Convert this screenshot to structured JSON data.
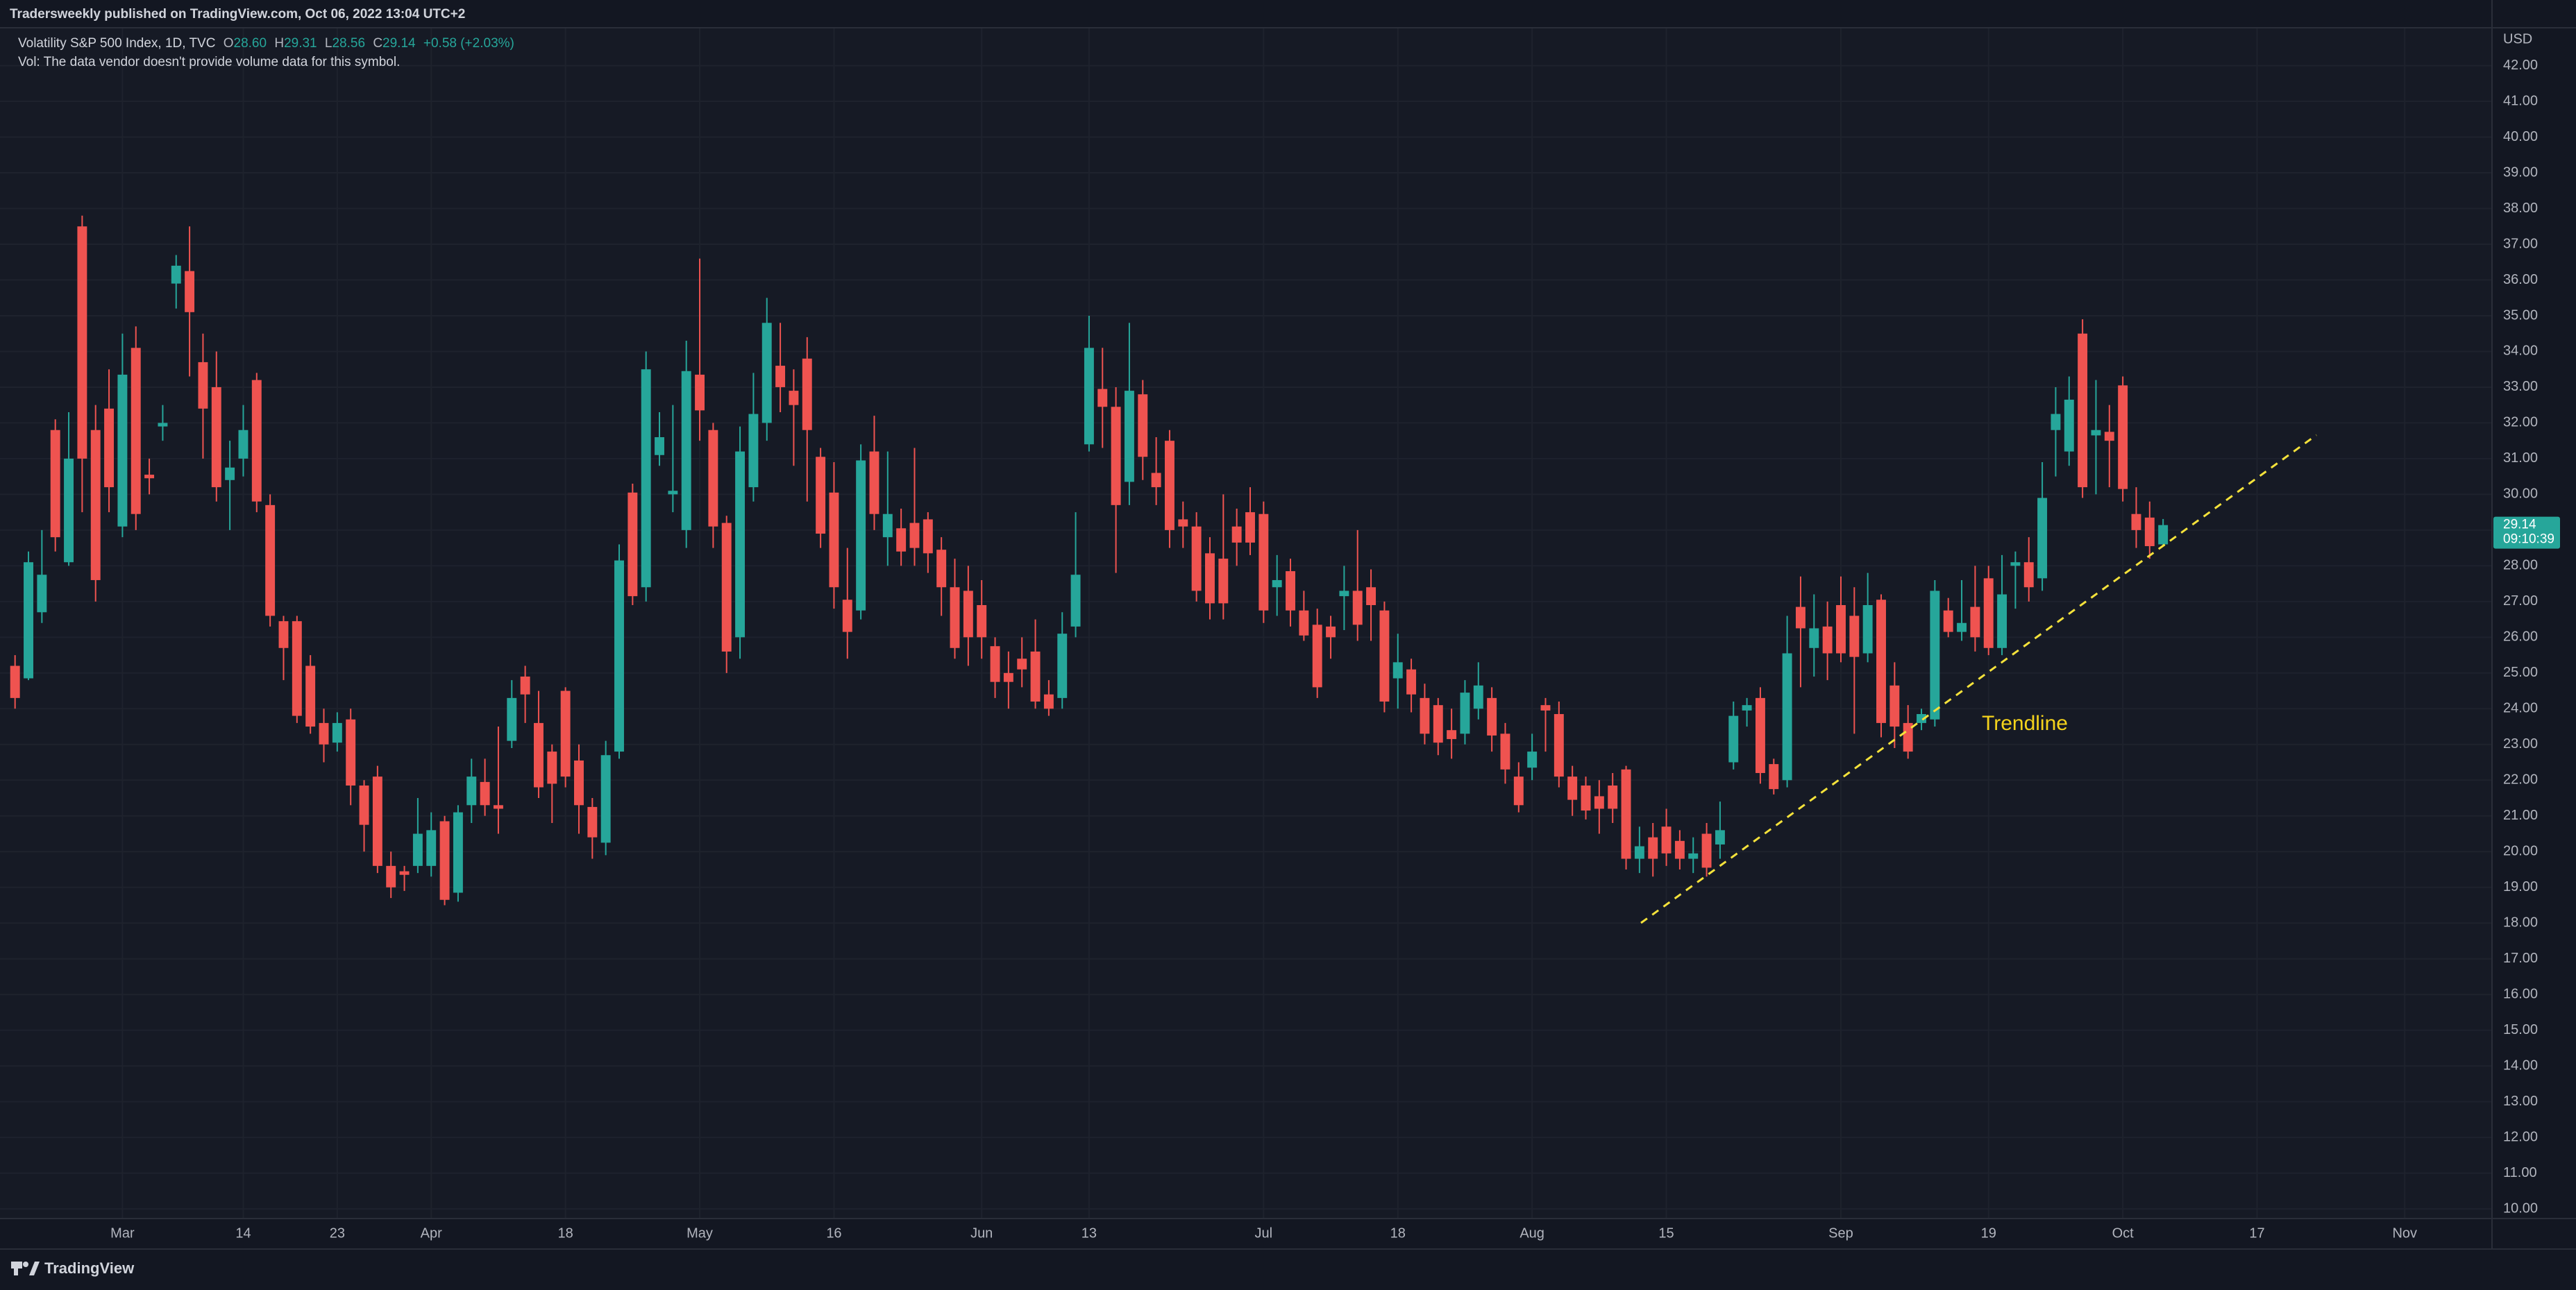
{
  "header": {
    "publisher_line": "Tradersweekly published on TradingView.com, Oct 06, 2022 13:04 UTC+2"
  },
  "legend": {
    "symbol": "Volatility S&P 500 Index, 1D, TVC",
    "ohlc": [
      {
        "key": "O",
        "value": "28.60"
      },
      {
        "key": "H",
        "value": "29.31"
      },
      {
        "key": "L",
        "value": "28.56"
      },
      {
        "key": "C",
        "value": "29.14"
      }
    ],
    "change": "+0.58 (+2.03%)",
    "volume_note": "Vol: The data vendor doesn't provide volume data for this symbol."
  },
  "chart_data": {
    "type": "candlestick",
    "annotation": "Trendline",
    "y_axis_unit": "USD",
    "last_price": "29.14",
    "countdown": "09:10:39",
    "up_color": "#26a69a",
    "down_color": "#ef5350",
    "grid": true,
    "categories": [
      null,
      null,
      null,
      null,
      null,
      null,
      null,
      null,
      "Mar",
      null,
      null,
      null,
      null,
      null,
      null,
      null,
      null,
      "14",
      null,
      null,
      null,
      null,
      null,
      null,
      "23",
      null,
      null,
      null,
      null,
      null,
      null,
      "Apr",
      null,
      null,
      null,
      null,
      null,
      null,
      null,
      null,
      null,
      "18",
      null,
      null,
      null,
      null,
      null,
      null,
      null,
      null,
      null,
      "May",
      null,
      null,
      null,
      null,
      null,
      null,
      null,
      null,
      null,
      "16",
      null,
      null,
      null,
      null,
      null,
      null,
      null,
      null,
      null,
      null,
      "Jun",
      null,
      null,
      null,
      null,
      null,
      null,
      null,
      "13",
      null,
      null,
      null,
      null,
      null,
      null,
      null,
      null,
      null,
      null,
      null,
      null,
      "Jul",
      null,
      null,
      null,
      null,
      null,
      null,
      null,
      null,
      null,
      "18",
      null,
      null,
      null,
      null,
      null,
      null,
      null,
      null,
      null,
      "Aug",
      null,
      null,
      null,
      null,
      null,
      null,
      null,
      null,
      null,
      "15",
      null,
      null,
      null,
      null,
      null,
      null,
      null,
      null,
      null,
      null,
      null,
      null,
      "Sep",
      null,
      null,
      null,
      null,
      null,
      null,
      null,
      null,
      null,
      null,
      "19",
      null,
      null,
      null,
      null,
      null,
      null,
      null,
      null,
      null,
      "Oct",
      null,
      null,
      null,
      null,
      null,
      null,
      null,
      null,
      null,
      "17",
      null,
      null,
      null,
      null,
      null,
      null,
      null,
      null,
      null,
      null,
      "Nov",
      null,
      null,
      null,
      null,
      null,
      null
    ],
    "open": [
      25.2,
      24.85,
      26.7,
      31.8,
      28.1,
      37.5,
      31.8,
      32.4,
      29.1,
      34.1,
      30.55,
      31.9,
      35.9,
      36.25,
      33.7,
      33.0,
      30.4,
      31.0,
      33.2,
      29.7,
      26.45,
      26.45,
      25.2,
      23.6,
      23.05,
      23.7,
      21.85,
      22.1,
      19.6,
      19.45,
      19.6,
      19.6,
      20.85,
      18.85,
      21.3,
      21.95,
      21.3,
      23.1,
      24.9,
      23.6,
      22.8,
      24.5,
      22.55,
      21.25,
      20.25,
      22.8,
      30.05,
      27.4,
      31.1,
      30.0,
      29.0,
      33.35,
      31.8,
      29.2,
      26.0,
      30.2,
      32.0,
      33.6,
      32.9,
      33.8,
      31.05,
      30.05,
      27.05,
      26.75,
      31.2,
      28.8,
      29.05,
      29.2,
      29.3,
      28.45,
      27.4,
      27.3,
      26.9,
      25.75,
      25.0,
      25.4,
      25.6,
      24.4,
      24.3,
      26.3,
      31.4,
      32.95,
      32.45,
      30.35,
      32.8,
      30.6,
      31.5,
      29.3,
      29.1,
      28.35,
      28.2,
      29.1,
      29.5,
      29.45,
      27.4,
      27.85,
      26.75,
      26.35,
      26.3,
      27.15,
      27.3,
      27.4,
      26.75,
      24.85,
      25.1,
      24.3,
      24.1,
      23.4,
      23.3,
      24.0,
      24.3,
      23.3,
      22.1,
      22.35,
      24.1,
      23.85,
      22.1,
      21.85,
      21.55,
      21.85,
      22.3,
      19.8,
      20.4,
      20.7,
      20.3,
      19.8,
      20.5,
      20.2,
      22.5,
      23.95,
      24.3,
      22.45,
      22.0,
      26.85,
      25.7,
      26.3,
      26.9,
      26.6,
      25.55,
      27.05,
      24.65,
      23.6,
      23.6,
      23.7,
      26.75,
      26.15,
      26.85,
      27.65,
      25.7,
      28.0,
      28.1,
      27.65,
      31.8,
      31.2,
      34.5,
      31.65,
      31.75,
      33.05,
      29.45,
      29.35,
      28.6,
      null,
      null,
      null,
      null,
      null,
      null,
      null,
      null,
      null,
      null,
      null,
      null,
      null,
      null,
      null,
      null,
      null,
      null,
      null,
      null,
      null,
      null,
      null,
      null
    ],
    "high": [
      25.5,
      28.4,
      29.0,
      32.1,
      32.3,
      37.8,
      32.5,
      33.5,
      34.5,
      34.7,
      31.0,
      32.5,
      36.7,
      37.5,
      34.5,
      34.0,
      31.5,
      32.5,
      33.4,
      30.0,
      26.6,
      26.6,
      25.5,
      24.0,
      23.9,
      24.0,
      22.0,
      22.4,
      20.0,
      19.6,
      21.5,
      21.1,
      21.0,
      21.3,
      22.6,
      22.6,
      23.5,
      24.8,
      25.2,
      24.5,
      23.0,
      24.6,
      23.0,
      21.5,
      23.1,
      28.6,
      30.3,
      34.0,
      32.3,
      32.5,
      34.3,
      36.6,
      32.0,
      29.4,
      31.9,
      33.4,
      35.5,
      34.8,
      33.5,
      34.4,
      31.3,
      30.9,
      28.5,
      31.4,
      32.2,
      31.2,
      29.6,
      31.3,
      29.5,
      28.8,
      28.2,
      28.0,
      27.6,
      26.0,
      25.6,
      26.0,
      26.5,
      24.8,
      26.7,
      29.5,
      35.0,
      34.1,
      33.0,
      34.8,
      33.2,
      31.6,
      31.8,
      29.8,
      29.5,
      28.8,
      30.0,
      29.6,
      30.2,
      29.8,
      28.3,
      28.2,
      27.3,
      26.8,
      26.6,
      28.0,
      29.0,
      27.9,
      27.0,
      26.1,
      25.4,
      24.7,
      24.3,
      24.0,
      24.8,
      25.3,
      24.6,
      23.6,
      22.5,
      23.3,
      24.3,
      24.2,
      22.4,
      22.1,
      22.0,
      22.2,
      22.4,
      20.7,
      20.8,
      21.2,
      20.6,
      20.4,
      20.8,
      21.4,
      24.2,
      24.3,
      24.6,
      22.6,
      26.6,
      27.7,
      27.2,
      27.0,
      27.7,
      27.4,
      27.8,
      27.2,
      25.3,
      24.1,
      24.0,
      27.6,
      27.1,
      27.6,
      28.0,
      28.0,
      28.3,
      28.4,
      28.8,
      30.9,
      33.0,
      33.3,
      34.9,
      33.2,
      32.5,
      33.3,
      30.2,
      29.8,
      29.31,
      null,
      null,
      null,
      null,
      null,
      null,
      null,
      null,
      null,
      null,
      null,
      null,
      null,
      null,
      null,
      null,
      null,
      null,
      null,
      null,
      null,
      null,
      null,
      null
    ],
    "low": [
      24.0,
      24.8,
      26.4,
      28.4,
      28.0,
      29.5,
      27.0,
      29.5,
      28.8,
      29.0,
      30.0,
      31.5,
      35.2,
      33.3,
      31.0,
      29.8,
      29.0,
      30.5,
      29.5,
      26.3,
      24.8,
      23.6,
      23.3,
      22.5,
      22.8,
      21.3,
      20.0,
      19.4,
      18.7,
      18.9,
      19.4,
      19.3,
      18.5,
      18.6,
      20.8,
      21.0,
      20.5,
      22.9,
      23.6,
      21.5,
      20.8,
      21.8,
      20.5,
      19.8,
      19.9,
      22.6,
      26.9,
      27.0,
      30.8,
      29.5,
      28.5,
      31.5,
      28.5,
      25.0,
      25.4,
      29.8,
      31.5,
      32.3,
      30.8,
      29.8,
      28.5,
      26.8,
      25.4,
      26.5,
      29.0,
      28.0,
      28.0,
      28.0,
      27.8,
      26.6,
      25.4,
      25.2,
      25.4,
      24.3,
      24.0,
      24.6,
      24.0,
      23.8,
      24.0,
      26.0,
      31.2,
      31.3,
      27.8,
      29.7,
      30.4,
      29.7,
      28.5,
      28.5,
      27.0,
      26.5,
      26.5,
      28.0,
      28.3,
      26.4,
      26.6,
      26.3,
      25.9,
      24.3,
      25.4,
      26.2,
      25.9,
      25.9,
      23.9,
      24.0,
      23.9,
      23.0,
      22.7,
      22.6,
      23.0,
      23.7,
      22.8,
      21.9,
      21.1,
      22.0,
      22.8,
      21.8,
      21.0,
      20.9,
      20.5,
      20.8,
      19.5,
      19.4,
      19.3,
      19.6,
      19.5,
      19.4,
      19.3,
      19.8,
      22.3,
      23.5,
      21.9,
      21.6,
      21.8,
      24.6,
      24.9,
      24.8,
      25.3,
      23.3,
      25.3,
      23.2,
      22.9,
      22.6,
      23.4,
      23.5,
      26.0,
      25.9,
      25.6,
      25.5,
      25.5,
      26.8,
      27.0,
      27.3,
      30.5,
      30.8,
      29.9,
      30.0,
      30.2,
      29.8,
      28.5,
      28.2,
      28.56,
      null,
      null,
      null,
      null,
      null,
      null,
      null,
      null,
      null,
      null,
      null,
      null,
      null,
      null,
      null,
      null,
      null,
      null,
      null,
      null,
      null,
      null,
      null,
      null
    ],
    "close": [
      24.3,
      28.1,
      27.75,
      28.8,
      31.0,
      31.0,
      27.6,
      30.2,
      33.35,
      29.45,
      30.45,
      32.0,
      36.4,
      35.1,
      32.4,
      30.2,
      30.75,
      31.8,
      29.8,
      26.6,
      25.7,
      23.8,
      23.5,
      23.0,
      23.6,
      21.85,
      20.75,
      19.6,
      19.0,
      19.35,
      20.5,
      20.6,
      18.65,
      21.1,
      22.1,
      21.3,
      21.2,
      24.3,
      24.4,
      21.8,
      21.9,
      22.1,
      21.3,
      20.4,
      22.7,
      28.15,
      27.15,
      33.5,
      31.6,
      30.1,
      33.45,
      32.35,
      29.1,
      25.6,
      31.2,
      32.25,
      34.8,
      33.0,
      32.5,
      31.8,
      28.9,
      27.4,
      26.15,
      30.95,
      29.45,
      29.45,
      28.4,
      28.5,
      28.35,
      27.4,
      25.7,
      26.0,
      26.0,
      24.75,
      24.75,
      25.1,
      24.2,
      24.0,
      26.1,
      27.75,
      34.1,
      32.45,
      29.7,
      32.9,
      31.05,
      30.2,
      29.0,
      29.1,
      27.3,
      26.95,
      26.95,
      28.65,
      28.65,
      26.75,
      27.6,
      26.75,
      26.05,
      24.6,
      26.0,
      27.3,
      26.35,
      26.9,
      24.2,
      25.3,
      24.4,
      23.3,
      23.05,
      23.15,
      24.45,
      24.65,
      23.25,
      22.3,
      21.3,
      22.8,
      23.95,
      22.1,
      21.45,
      21.15,
      21.2,
      21.2,
      19.8,
      20.15,
      19.8,
      19.95,
      19.8,
      19.95,
      19.55,
      20.6,
      23.8,
      24.1,
      22.2,
      21.75,
      25.55,
      26.25,
      26.25,
      25.55,
      25.55,
      25.45,
      26.9,
      23.6,
      23.5,
      22.8,
      23.85,
      27.3,
      26.15,
      26.4,
      26.0,
      25.7,
      27.2,
      28.1,
      27.4,
      29.9,
      32.25,
      32.65,
      30.2,
      31.8,
      31.5,
      30.15,
      29.0,
      28.55,
      29.14,
      null,
      null,
      null,
      null,
      null,
      null,
      null,
      null,
      null,
      null,
      null,
      null,
      null,
      null,
      null,
      null,
      null,
      null,
      null,
      null,
      null,
      null,
      null,
      null
    ],
    "ylim": [
      9.73,
      43.06
    ],
    "yticks": [
      {
        "value": 10,
        "label": "10.00"
      },
      {
        "value": 11,
        "label": "11.00"
      },
      {
        "value": 12,
        "label": "12.00"
      },
      {
        "value": 13,
        "label": "13.00"
      },
      {
        "value": 14,
        "label": "14.00"
      },
      {
        "value": 15,
        "label": "15.00"
      },
      {
        "value": 16,
        "label": "16.00"
      },
      {
        "value": 17,
        "label": "17.00"
      },
      {
        "value": 18,
        "label": "18.00"
      },
      {
        "value": 19,
        "label": "19.00"
      },
      {
        "value": 20,
        "label": "20.00"
      },
      {
        "value": 21,
        "label": "21.00"
      },
      {
        "value": 22,
        "label": "22.00"
      },
      {
        "value": 23,
        "label": "23.00"
      },
      {
        "value": 24,
        "label": "24.00"
      },
      {
        "value": 25,
        "label": "25.00"
      },
      {
        "value": 26,
        "label": "26.00"
      },
      {
        "value": 27,
        "label": "27.00"
      },
      {
        "value": 28,
        "label": "28.00"
      },
      {
        "value": 29,
        "label": "29.00"
      },
      {
        "value": 30,
        "label": "30.00"
      },
      {
        "value": 31,
        "label": "31.00"
      },
      {
        "value": 32,
        "label": "32.00"
      },
      {
        "value": 33,
        "label": "33.00"
      },
      {
        "value": 34,
        "label": "34.00"
      },
      {
        "value": 35,
        "label": "35.00"
      },
      {
        "value": 36,
        "label": "36.00"
      },
      {
        "value": 37,
        "label": "37.00"
      },
      {
        "value": 38,
        "label": "38.00"
      },
      {
        "value": 39,
        "label": "39.00"
      },
      {
        "value": 40,
        "label": "40.00"
      },
      {
        "value": 41,
        "label": "41.00"
      },
      {
        "value": 42,
        "label": "42.00"
      }
    ]
  },
  "footer": {
    "brand": "TradingView"
  }
}
